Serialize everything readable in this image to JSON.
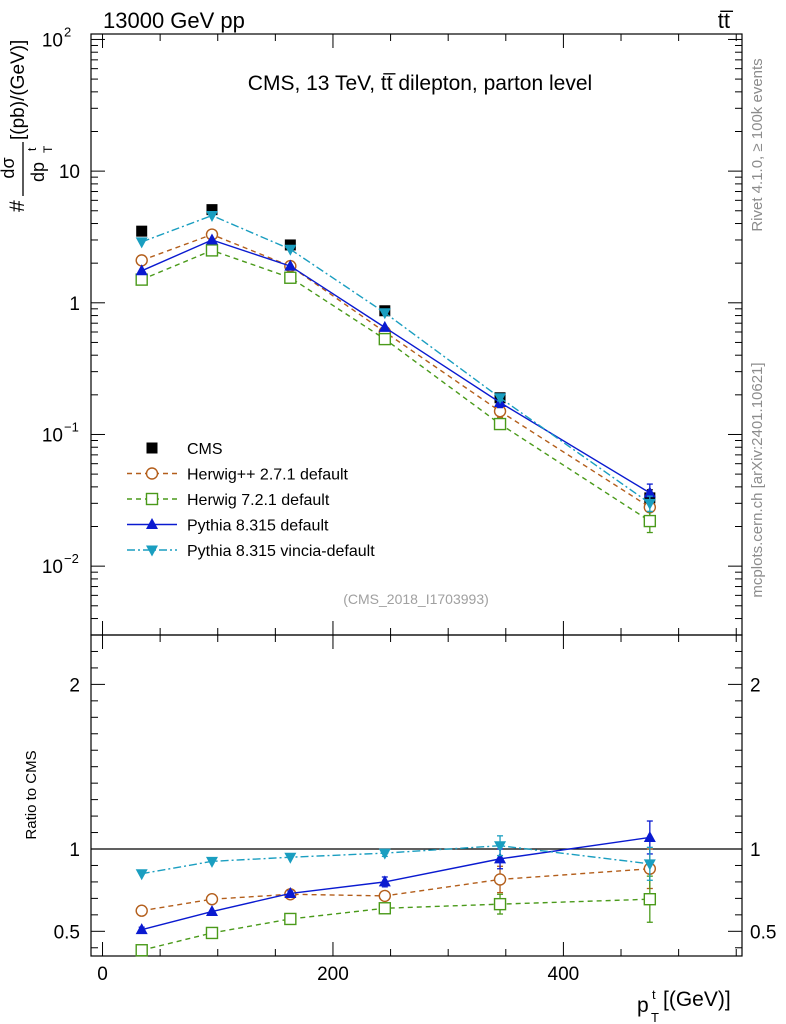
{
  "header": {
    "left": "13000 GeV pp",
    "right": "tt̅"
  },
  "side_labels": {
    "rivet": "Rivet 4.1.0, ≥ 100k events",
    "mcplots": "mcplots.cern.ch [arXiv:2401.10621]"
  },
  "chart_data": [
    {
      "type": "line",
      "panel": "main",
      "title": "CMS, 13 TeV, tt̅ dilepton, parton level",
      "analysis_tag": "(CMS_2018_I1703993)",
      "ylabel": "# dσ / dp_T^t [(pb)/(GeV)]",
      "yscale": "log",
      "ylim": [
        0.003,
        110
      ],
      "xlim": [
        -10,
        555
      ],
      "y_ticks": [
        {
          "value": 0.01,
          "base": "10",
          "exp": "−2"
        },
        {
          "value": 0.1,
          "base": "10",
          "exp": "−1"
        },
        {
          "value": 1,
          "base": "1",
          "exp": ""
        },
        {
          "value": 10,
          "base": "10",
          "exp": ""
        },
        {
          "value": 100,
          "base": "10",
          "exp": "2"
        }
      ],
      "x": [
        34,
        95,
        163,
        245,
        345,
        475
      ],
      "series": [
        {
          "name": "CMS",
          "color": "#000000",
          "marker": "square-filled",
          "line": "none",
          "values": [
            3.5,
            5.1,
            2.75,
            0.87,
            0.19,
            0.033
          ],
          "errors": [
            0.15,
            0.2,
            0.1,
            0.04,
            0.01,
            0.005
          ]
        },
        {
          "name": "Herwig++ 2.7.1 default",
          "color": "#b35e1b",
          "marker": "circle-open",
          "line": "dashed",
          "values": [
            2.1,
            3.3,
            1.9,
            0.6,
            0.15,
            0.028
          ],
          "errors": [
            0,
            0,
            0,
            0,
            0.015,
            0.004
          ]
        },
        {
          "name": "Herwig 7.2.1 default",
          "color": "#4a9a1a",
          "marker": "square-open",
          "line": "dashed",
          "values": [
            1.5,
            2.5,
            1.55,
            0.53,
            0.12,
            0.022
          ],
          "errors": [
            0,
            0,
            0,
            0,
            0.01,
            0.004
          ]
        },
        {
          "name": "Pythia 8.315 default",
          "color": "#0a1ad0",
          "marker": "triangle-up-filled",
          "line": "solid",
          "values": [
            1.75,
            3.0,
            1.9,
            0.65,
            0.175,
            0.036
          ],
          "errors": [
            0,
            0,
            0,
            0,
            0.015,
            0.006
          ]
        },
        {
          "name": "Pythia 8.315 vincia-default",
          "color": "#1a9ec0",
          "marker": "triangle-down-filled",
          "line": "dashdot",
          "values": [
            2.9,
            4.6,
            2.55,
            0.84,
            0.19,
            0.03
          ],
          "errors": [
            0,
            0,
            0,
            0,
            0.01,
            0.004
          ]
        }
      ]
    },
    {
      "type": "line",
      "panel": "ratio",
      "ylabel": "Ratio to CMS",
      "xlabel": "p_T^t [(GeV)]",
      "ylim": [
        0.35,
        2.3
      ],
      "xlim": [
        -10,
        555
      ],
      "y_ticks": [
        0.5,
        1,
        2
      ],
      "x_ticks": [
        0,
        200,
        400
      ],
      "x": [
        34,
        95,
        163,
        245,
        345,
        475
      ],
      "reference": 1,
      "series": [
        {
          "name": "Herwig++ 2.7.1 default",
          "color": "#b35e1b",
          "marker": "circle-open",
          "line": "dashed",
          "values": [
            0.625,
            0.695,
            0.725,
            0.715,
            0.815,
            0.88
          ],
          "errors": [
            0,
            0,
            0,
            0.025,
            0.08,
            0.12
          ]
        },
        {
          "name": "Herwig 7.2.1 default",
          "color": "#4a9a1a",
          "marker": "square-open",
          "line": "dashed",
          "values": [
            0.385,
            0.49,
            0.575,
            0.64,
            0.665,
            0.695
          ],
          "errors": [
            0,
            0,
            0,
            0.02,
            0.06,
            0.14
          ]
        },
        {
          "name": "Pythia 8.315 default",
          "color": "#0a1ad0",
          "marker": "triangle-up-filled",
          "line": "solid",
          "values": [
            0.51,
            0.62,
            0.73,
            0.8,
            0.94,
            1.07
          ],
          "errors": [
            0.015,
            0,
            0.015,
            0.03,
            0.06,
            0.1
          ]
        },
        {
          "name": "Pythia 8.315 vincia-default",
          "color": "#1a9ec0",
          "marker": "triangle-down-filled",
          "line": "dashdot",
          "values": [
            0.85,
            0.925,
            0.95,
            0.975,
            1.02,
            0.91
          ],
          "errors": [
            0,
            0,
            0,
            0.02,
            0.06,
            0.1
          ]
        }
      ]
    }
  ]
}
